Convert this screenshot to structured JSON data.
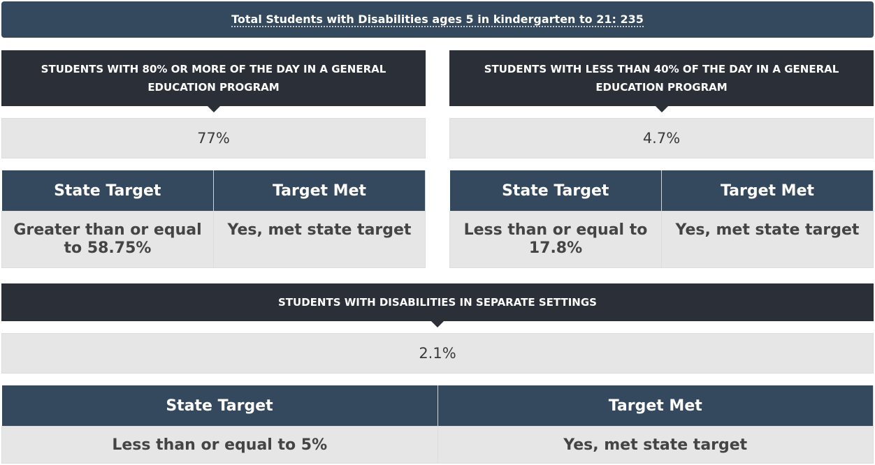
{
  "header": {
    "title": "Total Students with Disabilities ages 5 in kindergarten to 21: 235"
  },
  "panels": [
    {
      "title": "STUDENTS WITH 80% OR MORE OF THE DAY IN A GENERAL EDUCATION PROGRAM",
      "value": "77%",
      "table": {
        "columns": [
          "State Target",
          "Target Met"
        ],
        "rows": [
          [
            "Greater than or equal to 58.75%",
            "Yes, met state target"
          ]
        ]
      }
    },
    {
      "title": "STUDENTS WITH LESS THAN 40% OF THE DAY IN A GENERAL EDUCATION PROGRAM",
      "value": "4.7%",
      "table": {
        "columns": [
          "State Target",
          "Target Met"
        ],
        "rows": [
          [
            "Less than or equal to 17.8%",
            "Yes, met state target"
          ]
        ]
      }
    },
    {
      "title": "STUDENTS WITH DISABILITIES IN SEPARATE SETTINGS",
      "value": "2.1%",
      "table": {
        "columns": [
          "State Target",
          "Target Met"
        ],
        "rows": [
          [
            "Less than or equal to 5%",
            "Yes, met state target"
          ]
        ]
      }
    }
  ]
}
